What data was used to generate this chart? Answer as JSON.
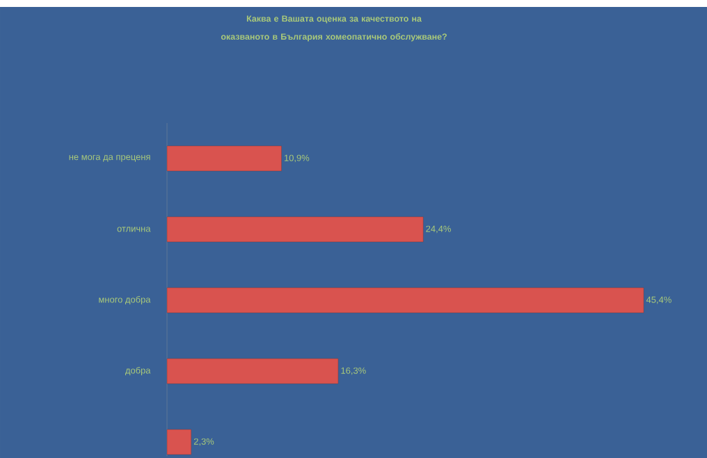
{
  "chart_data": {
    "type": "bar",
    "orientation": "horizontal",
    "title": "Каква е Вашата оценка за качеството на оказваното в България хомеопатично обслужване?",
    "categories": [
      "не мога да преценя",
      "отлична",
      "много добра",
      "добра",
      null
    ],
    "values": [
      10.9,
      24.4,
      45.4,
      16.3,
      2.3
    ],
    "value_labels": [
      "10,9%",
      "24,4%",
      "45,4%",
      "16,3%",
      "2,3%"
    ],
    "color": "#d9534f"
  }
}
